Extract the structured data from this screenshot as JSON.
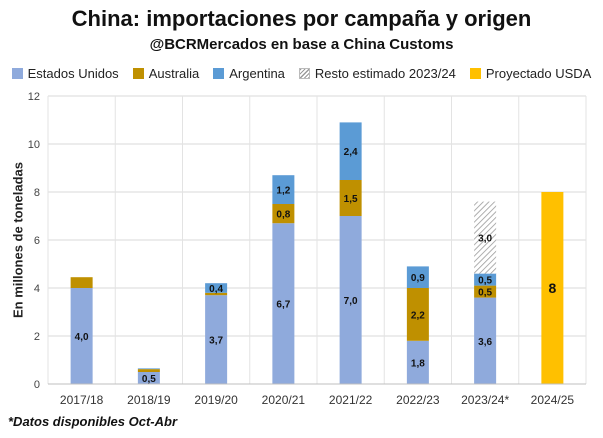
{
  "chart_data": {
    "type": "bar",
    "stacked": true,
    "title": "China: importaciones por campaña y origen",
    "subtitle": "@BCRMercados en base a China Customs",
    "ylabel": "En millones de toneladas",
    "xlabel": "",
    "ylim": [
      0,
      12
    ],
    "yticks": [
      "0",
      "2",
      "4",
      "6",
      "8",
      "10",
      "12"
    ],
    "grid": true,
    "legend_position": "top",
    "categories": [
      "2017/18",
      "2018/19",
      "2019/20",
      "2020/21",
      "2021/22",
      "2022/23",
      "2023/24*",
      "2024/25"
    ],
    "series": [
      {
        "name": "Estados Unidos",
        "color": "#8faadc",
        "values": [
          4.0,
          0.5,
          3.7,
          6.7,
          7.0,
          1.8,
          3.6,
          0
        ],
        "labels": [
          "4,0",
          "0,5",
          "3,7",
          "6,7",
          "7,0",
          "1,8",
          "3,6",
          ""
        ]
      },
      {
        "name": "Australia",
        "color": "#bf9000",
        "values": [
          0.45,
          0.12,
          0.1,
          0.8,
          1.5,
          2.2,
          0.5,
          0
        ],
        "labels": [
          "",
          "",
          "",
          "0,8",
          "1,5",
          "2,2",
          "0,5",
          ""
        ]
      },
      {
        "name": "Argentina",
        "color": "#5b9bd5",
        "values": [
          0,
          0.03,
          0.4,
          1.2,
          2.4,
          0.9,
          0.5,
          0
        ],
        "labels": [
          "",
          "",
          "0,4",
          "1,2",
          "2,4",
          "0,9",
          "0,5",
          ""
        ]
      },
      {
        "name": "Resto estimado 2023/24",
        "color": "#bfbfbf",
        "pattern": "hatch",
        "values": [
          0,
          0,
          0,
          0,
          0,
          0,
          3.0,
          0
        ],
        "labels": [
          "",
          "",
          "",
          "",
          "",
          "",
          "3,0",
          ""
        ]
      },
      {
        "name": "Proyectado USDA",
        "color": "#ffc000",
        "values": [
          0,
          0,
          0,
          0,
          0,
          0,
          0,
          8
        ],
        "labels": [
          "",
          "",
          "",
          "",
          "",
          "",
          "",
          "8"
        ]
      }
    ]
  },
  "footnote": "*Datos disponibles Oct-Abr"
}
